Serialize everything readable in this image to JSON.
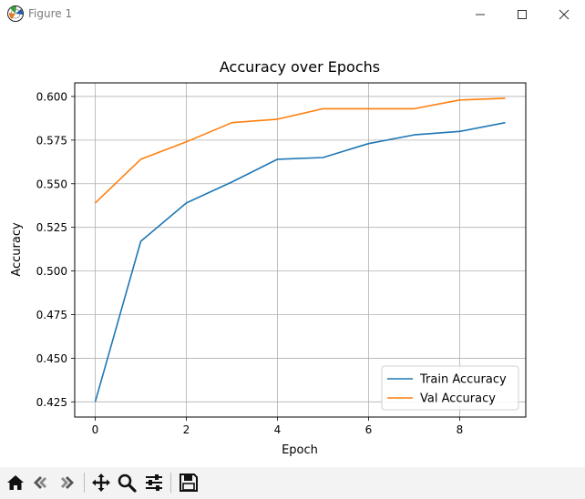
{
  "window": {
    "title": "Figure 1",
    "app_icon": "matplotlib-figure-icon",
    "controls": [
      "minimize-icon",
      "maximize-icon",
      "close-icon"
    ]
  },
  "toolbar": {
    "buttons": [
      "home-icon",
      "back-arrow-icon",
      "forward-arrow-icon",
      "pan-icon",
      "zoom-icon",
      "configure-subplots-icon",
      "save-icon"
    ]
  },
  "chart_data": {
    "type": "line",
    "title": "Accuracy over Epochs",
    "xlabel": "Epoch",
    "ylabel": "Accuracy",
    "x": [
      0,
      1,
      2,
      3,
      4,
      5,
      6,
      7,
      8,
      9
    ],
    "series": [
      {
        "name": "Train Accuracy",
        "color": "#1f77b4",
        "values": [
          0.425,
          0.517,
          0.539,
          0.551,
          0.564,
          0.565,
          0.573,
          0.578,
          0.58,
          0.585
        ]
      },
      {
        "name": "Val Accuracy",
        "color": "#ff7f0e",
        "values": [
          0.539,
          0.564,
          0.574,
          0.585,
          0.587,
          0.593,
          0.593,
          0.593,
          0.598,
          0.599
        ]
      }
    ],
    "xticks": [
      "0",
      "2",
      "4",
      "6",
      "8"
    ],
    "yticks": [
      "0.425",
      "0.450",
      "0.475",
      "0.500",
      "0.525",
      "0.550",
      "0.575",
      "0.600"
    ],
    "xlim": [
      -0.45,
      9.45
    ],
    "ylim": [
      0.4163,
      0.6078
    ],
    "grid": true,
    "legend_position": "lower right"
  }
}
